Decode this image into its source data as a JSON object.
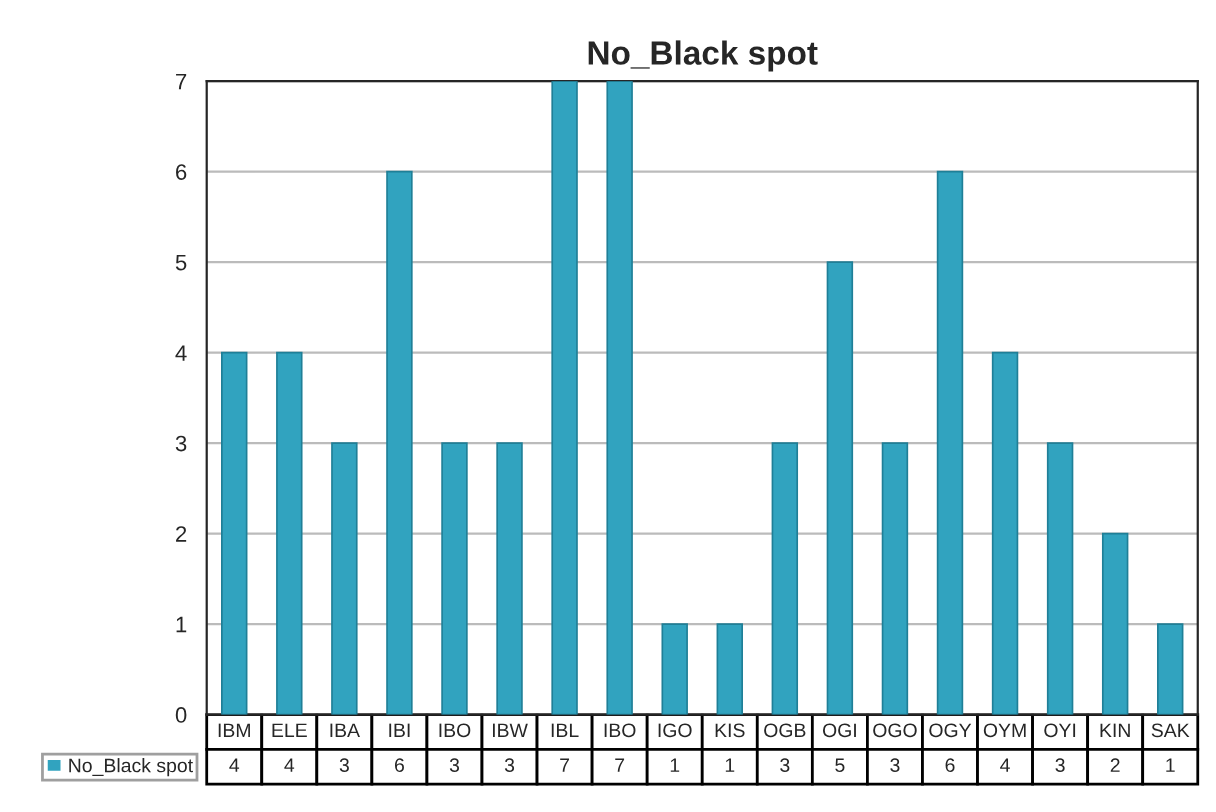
{
  "chart_data": {
    "type": "bar",
    "title": "No_Black spot",
    "categories": [
      "IBM",
      "ELE",
      "IBA",
      "IBI",
      "IBO",
      "IBW",
      "IBL",
      "IBO",
      "IGO",
      "KIS",
      "OGB",
      "OGI",
      "OGO",
      "OGY",
      "OYM",
      "OYI",
      "KIN",
      "SAK"
    ],
    "series": [
      {
        "name": "No_Black spot",
        "color": "#31a3bf",
        "values": [
          4,
          4,
          3,
          6,
          3,
          3,
          7,
          7,
          1,
          1,
          3,
          5,
          3,
          6,
          4,
          3,
          2,
          1
        ]
      }
    ],
    "ylim": [
      0,
      7
    ],
    "yticks": [
      0,
      1,
      2,
      3,
      4,
      5,
      6,
      7
    ],
    "grid": "y",
    "legend": "bottom left",
    "data_labels": true
  }
}
